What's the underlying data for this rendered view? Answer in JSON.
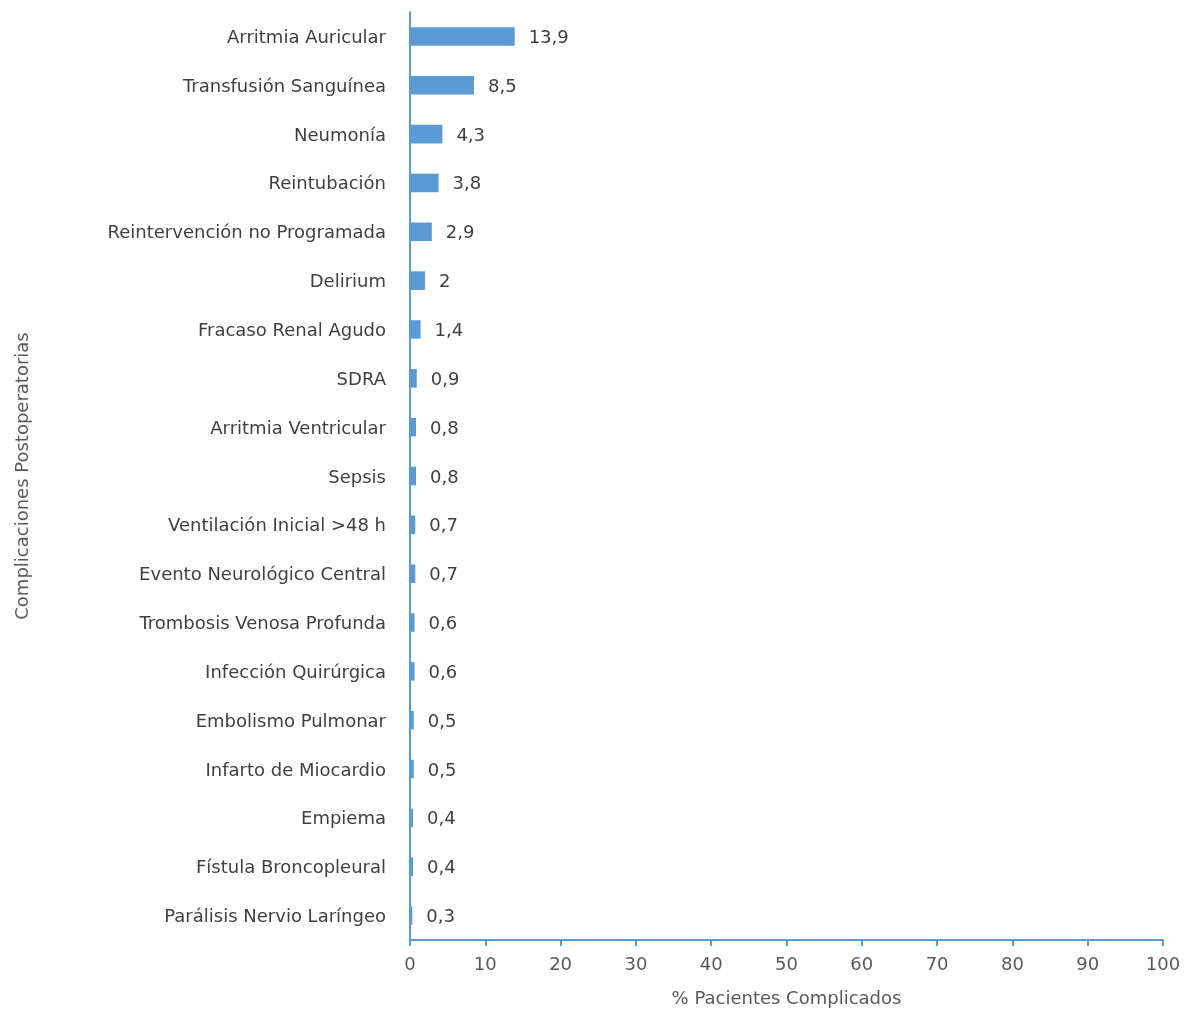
{
  "chart_data": {
    "type": "bar",
    "orientation": "horizontal",
    "xlabel": "% Pacientes Complicados",
    "ylabel": "Complicaciones Postoperatorias",
    "categories": [
      "Arritmia Auricular",
      "Transfusión Sanguínea",
      "Neumonía",
      "Reintubación",
      "Reintervención no Programada",
      "Delirium",
      "Fracaso Renal Agudo",
      "SDRA",
      "Arritmia Ventricular",
      "Sepsis",
      "Ventilación Inicial >48 h",
      "Evento Neurológico Central",
      "Trombosis Venosa Profunda",
      "Infección Quirúrgica",
      "Embolismo Pulmonar",
      "Infarto de Miocardio",
      "Empiema",
      "Fístula Broncopleural",
      "Parálisis Nervio Laríngeo"
    ],
    "values": [
      13.9,
      8.5,
      4.3,
      3.8,
      2.9,
      2,
      1.4,
      0.9,
      0.8,
      0.8,
      0.7,
      0.7,
      0.6,
      0.6,
      0.5,
      0.5,
      0.4,
      0.4,
      0.3
    ],
    "value_labels": [
      "13,9",
      "8,5",
      "4,3",
      "3,8",
      "2,9",
      "2",
      "1,4",
      "0,9",
      "0,8",
      "0,8",
      "0,7",
      "0,7",
      "0,6",
      "0,6",
      "0,5",
      "0,5",
      "0,4",
      "0,4",
      "0,3"
    ],
    "color": "#5b9bd5",
    "xlim": [
      0,
      100
    ],
    "xticks": [
      0,
      10,
      20,
      30,
      40,
      50,
      60,
      70,
      80,
      90,
      100
    ],
    "grid": false
  }
}
